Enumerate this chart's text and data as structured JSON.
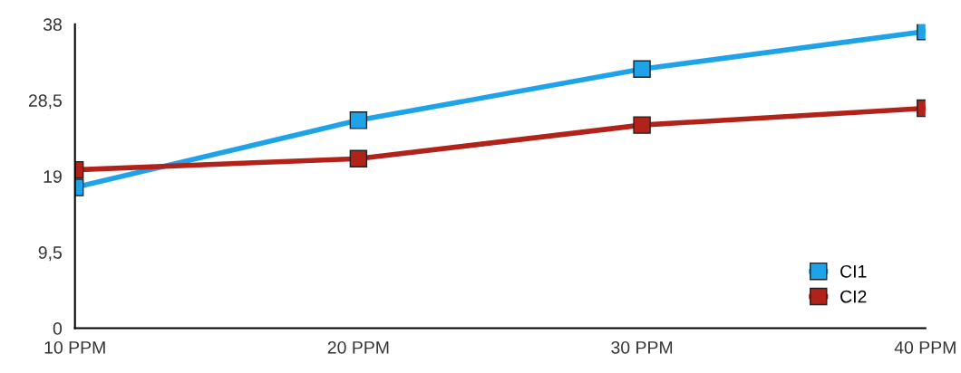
{
  "chart_data": {
    "type": "line",
    "categories": [
      "10 PPM",
      "20 PPM",
      "30 PPM",
      "40 PPM"
    ],
    "series": [
      {
        "name": "CI1",
        "color": "#1fa3e8",
        "values": [
          17.6,
          26.0,
          32.4,
          37.1
        ]
      },
      {
        "name": "CI2",
        "color": "#b0221a",
        "values": [
          19.8,
          21.2,
          25.4,
          27.5
        ]
      }
    ],
    "ylim": [
      0,
      38
    ],
    "yticks": [
      0,
      {
        "value": 9.5,
        "label": "9,5"
      },
      19,
      {
        "value": 28.5,
        "label": "28,5"
      },
      38
    ],
    "marker": "square",
    "line_style": "solid",
    "legend": "bottom right",
    "grid": false
  }
}
